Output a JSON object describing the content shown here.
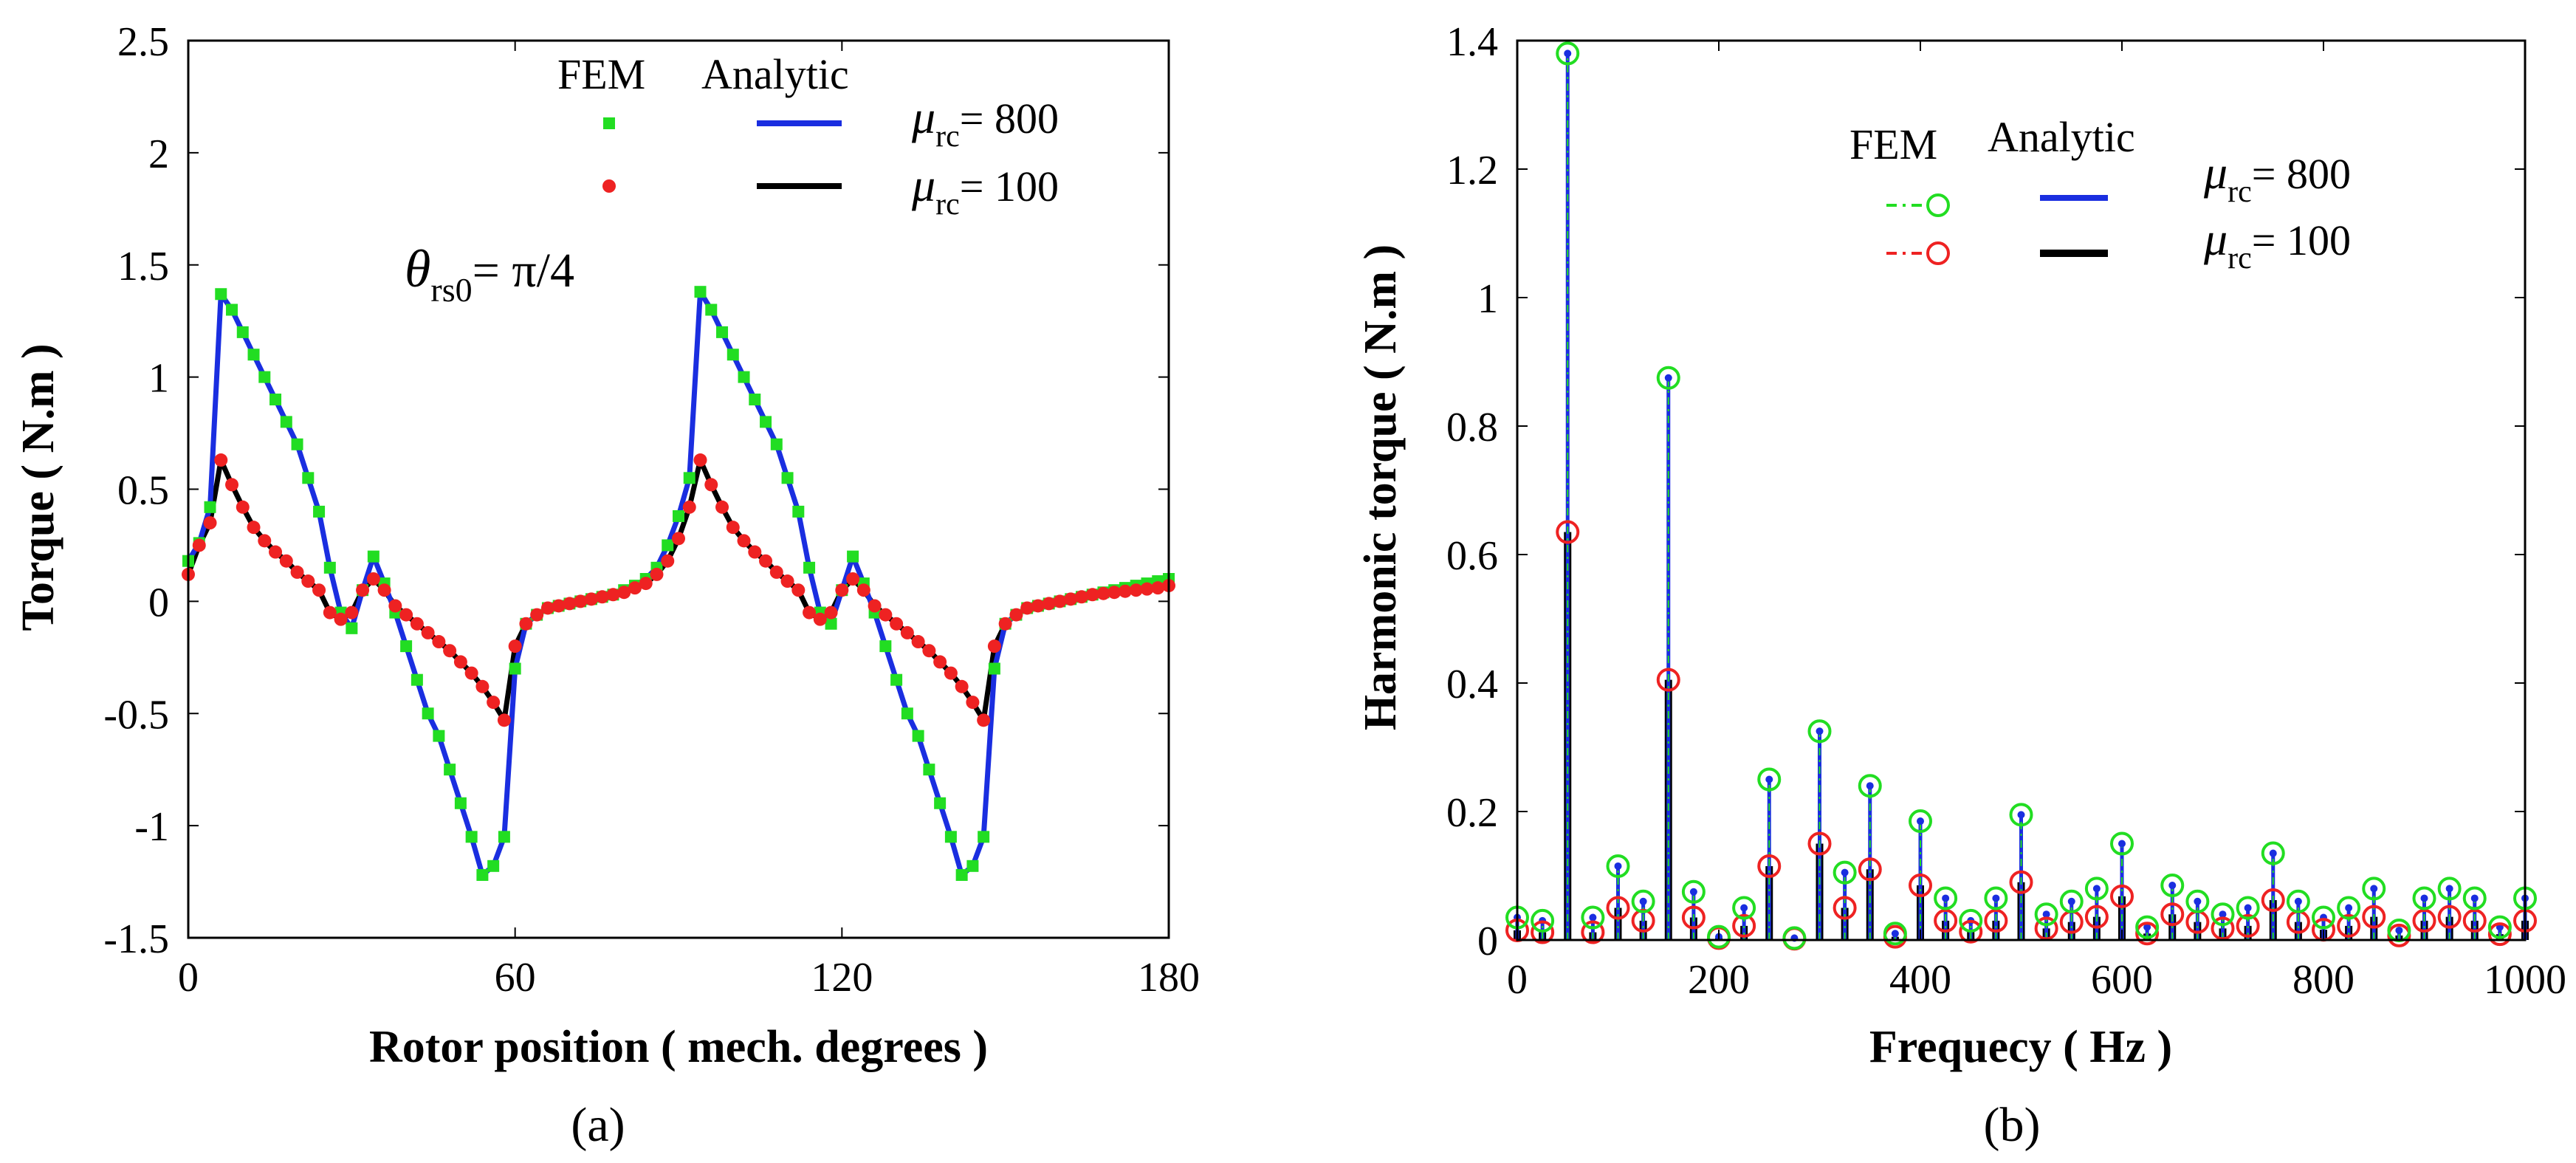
{
  "chart_data": [
    {
      "type": "line",
      "panel_label": "(a)",
      "xlabel": "Rotor position ( mech. degrees )",
      "ylabel": "Torque ( N.m )",
      "xlim": [
        0,
        180
      ],
      "ylim": [
        -1.5,
        2.5
      ],
      "xticks": [
        "0",
        "60",
        "120",
        "180"
      ],
      "xtick_values": [
        0,
        60,
        120,
        180
      ],
      "yticks": [
        "-1.5",
        "-1",
        "-0.5",
        "0",
        "0.5",
        "1",
        "1.5",
        "2",
        "2.5"
      ],
      "ytick_values": [
        -1.5,
        -1,
        -0.5,
        0,
        0.5,
        1,
        1.5,
        2,
        2.5
      ],
      "grid": false,
      "legend": {
        "placement": "top-right",
        "col_headers": [
          "FEM",
          "Analytic"
        ],
        "mu_symbol": "μ",
        "mu_sub": "rc",
        "rows": [
          "= 800",
          "= 100"
        ]
      },
      "annotation": {
        "symbol": "θ",
        "sub": "rs0",
        "text": "= π/4"
      },
      "series": [
        {
          "name": "μrc = 800",
          "fem_color": "#22dd22",
          "line_color": "#1a2ee0",
          "x": [
            0,
            2,
            4,
            6,
            8,
            10,
            12,
            14,
            16,
            18,
            20,
            22,
            24,
            26,
            28,
            30,
            32,
            34,
            36,
            38,
            40,
            42,
            44,
            46,
            48,
            50,
            52,
            54,
            56,
            58,
            60,
            62,
            64,
            66,
            68,
            70,
            72,
            74,
            76,
            78,
            80,
            82,
            84,
            86,
            88,
            90,
            92,
            94,
            96,
            98,
            100,
            102,
            104,
            106,
            108,
            110,
            112,
            114,
            116,
            118,
            120,
            122,
            124,
            126,
            128,
            130,
            132,
            134,
            136,
            138,
            140,
            142,
            144,
            146,
            148,
            150,
            152,
            154,
            156,
            158,
            160,
            162,
            164,
            166,
            168,
            170,
            172,
            174,
            176,
            178,
            180
          ],
          "y": [
            0.18,
            0.26,
            0.42,
            1.37,
            1.3,
            1.2,
            1.1,
            1.0,
            0.9,
            0.8,
            0.7,
            0.55,
            0.4,
            0.15,
            -0.05,
            -0.12,
            0.05,
            0.2,
            0.08,
            -0.05,
            -0.2,
            -0.35,
            -0.5,
            -0.6,
            -0.75,
            -0.9,
            -1.05,
            -1.22,
            -1.18,
            -1.05,
            -0.3,
            -0.1,
            -0.06,
            -0.03,
            -0.02,
            -0.01,
            0.0,
            0.01,
            0.02,
            0.03,
            0.05,
            0.07,
            0.1,
            0.15,
            0.25,
            0.38,
            0.55,
            1.38,
            1.3,
            1.2,
            1.1,
            1.0,
            0.9,
            0.8,
            0.7,
            0.55,
            0.4,
            0.15,
            -0.05,
            -0.1,
            0.05,
            0.2,
            0.08,
            -0.05,
            -0.2,
            -0.35,
            -0.5,
            -0.6,
            -0.75,
            -0.9,
            -1.05,
            -1.22,
            -1.18,
            -1.05,
            -0.3,
            -0.1,
            -0.06,
            -0.03,
            -0.02,
            -0.01,
            0.0,
            0.01,
            0.02,
            0.03,
            0.04,
            0.05,
            0.06,
            0.07,
            0.08,
            0.09,
            0.1
          ]
        },
        {
          "name": "μrc = 100",
          "fem_color": "#ee2222",
          "line_color": "#000000",
          "x": [
            0,
            2,
            4,
            6,
            8,
            10,
            12,
            14,
            16,
            18,
            20,
            22,
            24,
            26,
            28,
            30,
            32,
            34,
            36,
            38,
            40,
            42,
            44,
            46,
            48,
            50,
            52,
            54,
            56,
            58,
            60,
            62,
            64,
            66,
            68,
            70,
            72,
            74,
            76,
            78,
            80,
            82,
            84,
            86,
            88,
            90,
            92,
            94,
            96,
            98,
            100,
            102,
            104,
            106,
            108,
            110,
            112,
            114,
            116,
            118,
            120,
            122,
            124,
            126,
            128,
            130,
            132,
            134,
            136,
            138,
            140,
            142,
            144,
            146,
            148,
            150,
            152,
            154,
            156,
            158,
            160,
            162,
            164,
            166,
            168,
            170,
            172,
            174,
            176,
            178,
            180
          ],
          "y": [
            0.12,
            0.25,
            0.35,
            0.63,
            0.52,
            0.42,
            0.33,
            0.27,
            0.22,
            0.18,
            0.13,
            0.09,
            0.05,
            -0.05,
            -0.08,
            -0.05,
            0.05,
            0.1,
            0.05,
            -0.02,
            -0.06,
            -0.1,
            -0.14,
            -0.18,
            -0.22,
            -0.27,
            -0.32,
            -0.38,
            -0.45,
            -0.53,
            -0.2,
            -0.1,
            -0.06,
            -0.03,
            -0.02,
            -0.01,
            0.0,
            0.01,
            0.02,
            0.03,
            0.04,
            0.06,
            0.08,
            0.12,
            0.18,
            0.28,
            0.42,
            0.63,
            0.52,
            0.42,
            0.33,
            0.27,
            0.22,
            0.18,
            0.13,
            0.09,
            0.05,
            -0.05,
            -0.08,
            -0.05,
            0.05,
            0.1,
            0.05,
            -0.02,
            -0.06,
            -0.1,
            -0.14,
            -0.18,
            -0.22,
            -0.27,
            -0.32,
            -0.38,
            -0.45,
            -0.53,
            -0.2,
            -0.1,
            -0.06,
            -0.03,
            -0.02,
            -0.01,
            0.0,
            0.01,
            0.02,
            0.03,
            0.035,
            0.04,
            0.045,
            0.05,
            0.055,
            0.06,
            0.07
          ]
        }
      ]
    },
    {
      "type": "stem",
      "panel_label": "(b)",
      "xlabel": "Frequecy ( Hz )",
      "ylabel": "Harmonic torque ( N.m )",
      "xlim": [
        0,
        1000
      ],
      "ylim": [
        0,
        1.4
      ],
      "xticks": [
        "0",
        "200",
        "400",
        "600",
        "800",
        "1000"
      ],
      "xtick_values": [
        0,
        200,
        400,
        600,
        800,
        1000
      ],
      "yticks": [
        "0",
        "0.2",
        "0.4",
        "0.6",
        "0.8",
        "1",
        "1.2",
        "1.4"
      ],
      "ytick_values": [
        0,
        0.2,
        0.4,
        0.6,
        0.8,
        1,
        1.2,
        1.4
      ],
      "grid": false,
      "legend": {
        "placement": "top-right",
        "col_headers": [
          "FEM",
          "Analytic"
        ],
        "mu_symbol": "μ",
        "mu_sub": "rc",
        "rows": [
          "= 800",
          "= 100"
        ]
      },
      "x": [
        0,
        25,
        50,
        75,
        100,
        125,
        150,
        175,
        200,
        225,
        250,
        275,
        300,
        325,
        350,
        375,
        400,
        425,
        450,
        475,
        500,
        525,
        550,
        575,
        600,
        625,
        650,
        675,
        700,
        725,
        750,
        775,
        800,
        825,
        850,
        875,
        900,
        925,
        950,
        975,
        1000
      ],
      "series": [
        {
          "name": "μrc = 800",
          "fem_color": "#22dd22",
          "stem_color": "#1a2ee0",
          "values": [
            0.035,
            0.03,
            1.38,
            0.035,
            0.115,
            0.06,
            0.875,
            0.075,
            0.005,
            0.05,
            0.25,
            0.003,
            0.325,
            0.105,
            0.24,
            0.01,
            0.185,
            0.065,
            0.03,
            0.065,
            0.195,
            0.04,
            0.06,
            0.08,
            0.15,
            0.02,
            0.085,
            0.06,
            0.04,
            0.05,
            0.135,
            0.06,
            0.035,
            0.05,
            0.08,
            0.015,
            0.065,
            0.08,
            0.065,
            0.02,
            0.065
          ]
        },
        {
          "name": "μrc = 100",
          "fem_color": "#ee2222",
          "stem_color": "#000000",
          "values": [
            0.015,
            0.012,
            0.635,
            0.012,
            0.05,
            0.03,
            0.405,
            0.035,
            0.003,
            0.022,
            0.115,
            0.002,
            0.15,
            0.05,
            0.11,
            0.005,
            0.085,
            0.03,
            0.013,
            0.03,
            0.09,
            0.018,
            0.028,
            0.036,
            0.068,
            0.01,
            0.04,
            0.028,
            0.018,
            0.022,
            0.062,
            0.028,
            0.016,
            0.022,
            0.036,
            0.007,
            0.03,
            0.036,
            0.03,
            0.009,
            0.03
          ]
        }
      ]
    }
  ]
}
